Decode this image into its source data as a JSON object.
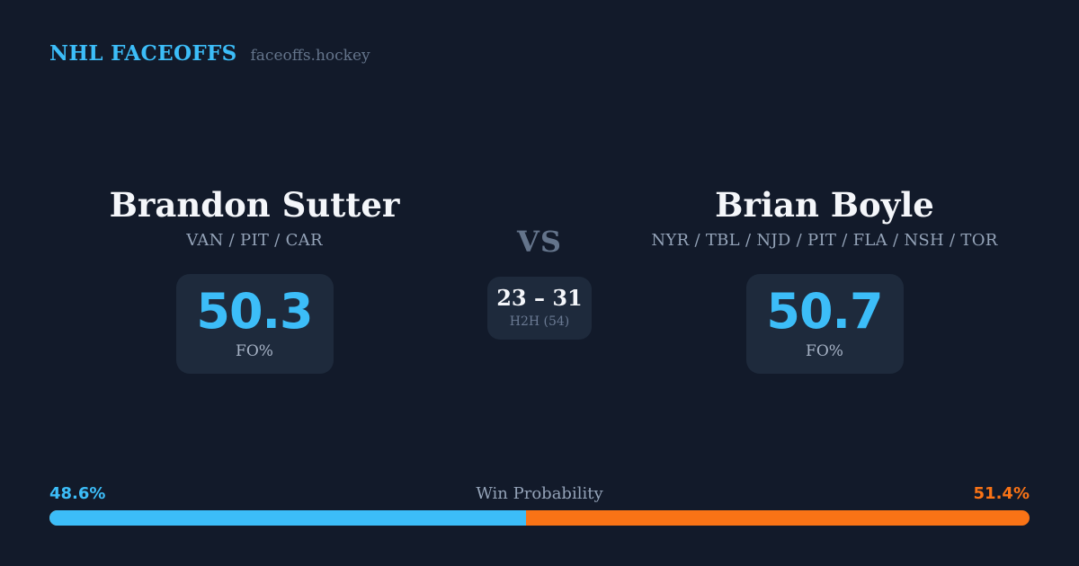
{
  "colors": {
    "background": "#121a2a",
    "panel": "#1e2a3c",
    "accent_blue": "#3cbdf8",
    "accent_orange": "#f97316",
    "text_primary": "#f4f6fa",
    "text_muted": "#94a3b8"
  },
  "header": {
    "brand": "NHL FACEOFFS",
    "domain": "faceoffs.hockey"
  },
  "matchup": {
    "vs_label": "VS",
    "h2h": {
      "score": "23 – 31",
      "label": "H2H (54)"
    },
    "players": [
      {
        "name": "Brandon Sutter",
        "teams": "VAN / PIT / CAR",
        "fo_pct": "50.3",
        "fo_label": "FO%"
      },
      {
        "name": "Brian Boyle",
        "teams": "NYR / TBL / NJD / PIT / FLA / NSH / TOR",
        "fo_pct": "50.7",
        "fo_label": "FO%"
      }
    ]
  },
  "win_probability": {
    "label": "Win Probability",
    "left_pct": "48.6%",
    "right_pct": "51.4%",
    "left_value": 48.6,
    "right_value": 51.4
  }
}
